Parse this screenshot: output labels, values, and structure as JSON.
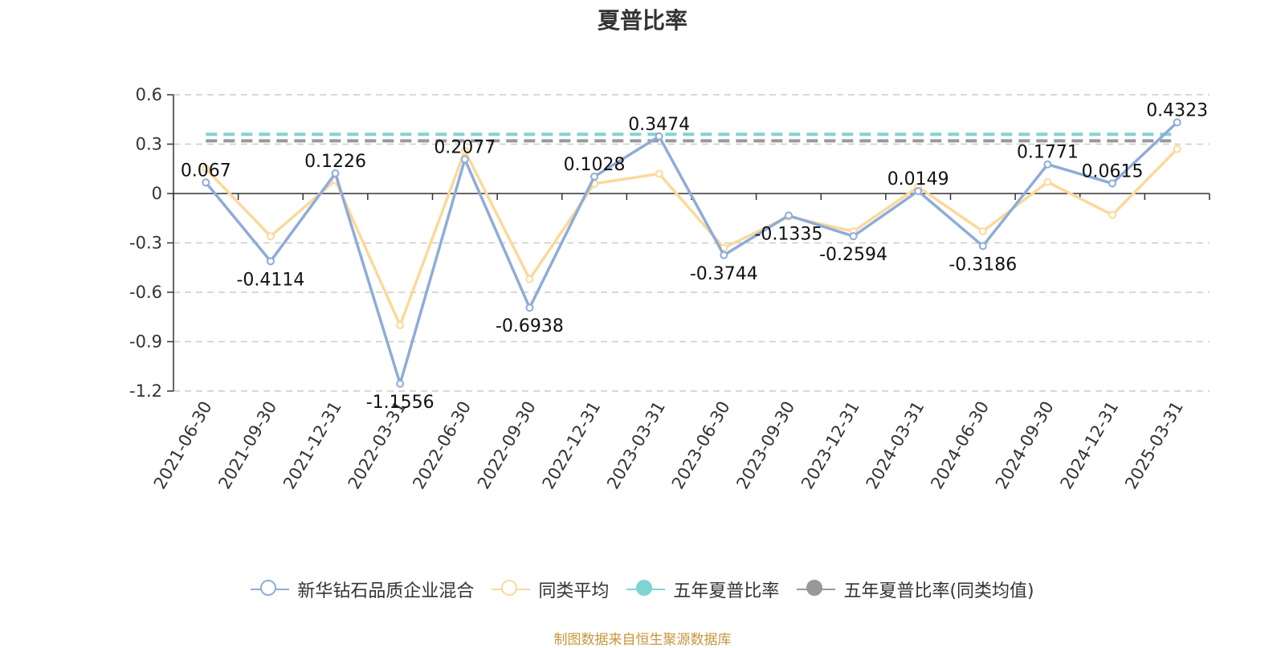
{
  "chart_data": {
    "type": "line",
    "title": "夏普比率",
    "categories": [
      "2021-06-30",
      "2021-09-30",
      "2021-12-31",
      "2022-03-31",
      "2022-06-30",
      "2022-09-30",
      "2022-12-31",
      "2023-03-31",
      "2023-06-30",
      "2023-09-30",
      "2023-12-31",
      "2024-03-31",
      "2024-06-30",
      "2024-09-30",
      "2024-12-31",
      "2025-03-31"
    ],
    "ylim": [
      -1.2,
      0.6
    ],
    "yticks": [
      0.6,
      0.3,
      0,
      -0.3,
      -0.6,
      -0.9,
      -1.2
    ],
    "ytick_labels": [
      "0.6",
      "0.3",
      "0",
      "-0.3",
      "-0.6",
      "-0.9",
      "-1.2"
    ],
    "grid": true,
    "legend_position": "bottom",
    "series": [
      {
        "name": "新华钻石品质企业混合",
        "color": "#8eacd8",
        "values": [
          0.067,
          -0.4114,
          0.1226,
          -1.1556,
          0.2077,
          -0.6938,
          0.1028,
          0.3474,
          -0.3744,
          -0.1335,
          -0.2594,
          0.0149,
          -0.3186,
          0.1771,
          0.0615,
          0.4323
        ],
        "labels": [
          "0.067",
          "-0.4114",
          "0.1226",
          "-1.1556",
          "0.2077",
          "-0.6938",
          "0.1028",
          "0.3474",
          "-0.3744",
          "-0.1335",
          "-0.2594",
          "0.0149",
          "-0.3186",
          "0.1771",
          "0.0615",
          "0.4323"
        ]
      },
      {
        "name": "同类平均",
        "color": "#fbd99a",
        "values": [
          0.15,
          -0.26,
          0.08,
          -0.8,
          0.26,
          -0.52,
          0.06,
          0.12,
          -0.33,
          -0.14,
          -0.23,
          0.04,
          -0.23,
          0.07,
          -0.13,
          0.27
        ]
      },
      {
        "name": "五年夏普比率",
        "color": "#7fd4d4",
        "constant": 0.36,
        "style": "dashed"
      },
      {
        "name": "五年夏普比率(同类均值)",
        "color": "#999999",
        "constant": 0.32,
        "style": "dashed"
      }
    ]
  },
  "legend": {
    "items": [
      {
        "label": "新华钻石品质企业混合",
        "color": "#8eacd8",
        "filled": false
      },
      {
        "label": "同类平均",
        "color": "#fbd99a",
        "filled": false
      },
      {
        "label": "五年夏普比率",
        "color": "#7fd4d4",
        "filled": true
      },
      {
        "label": "五年夏普比率(同类均值)",
        "color": "#999999",
        "filled": true
      }
    ]
  },
  "source_note": "制图数据来自恒生聚源数据库"
}
